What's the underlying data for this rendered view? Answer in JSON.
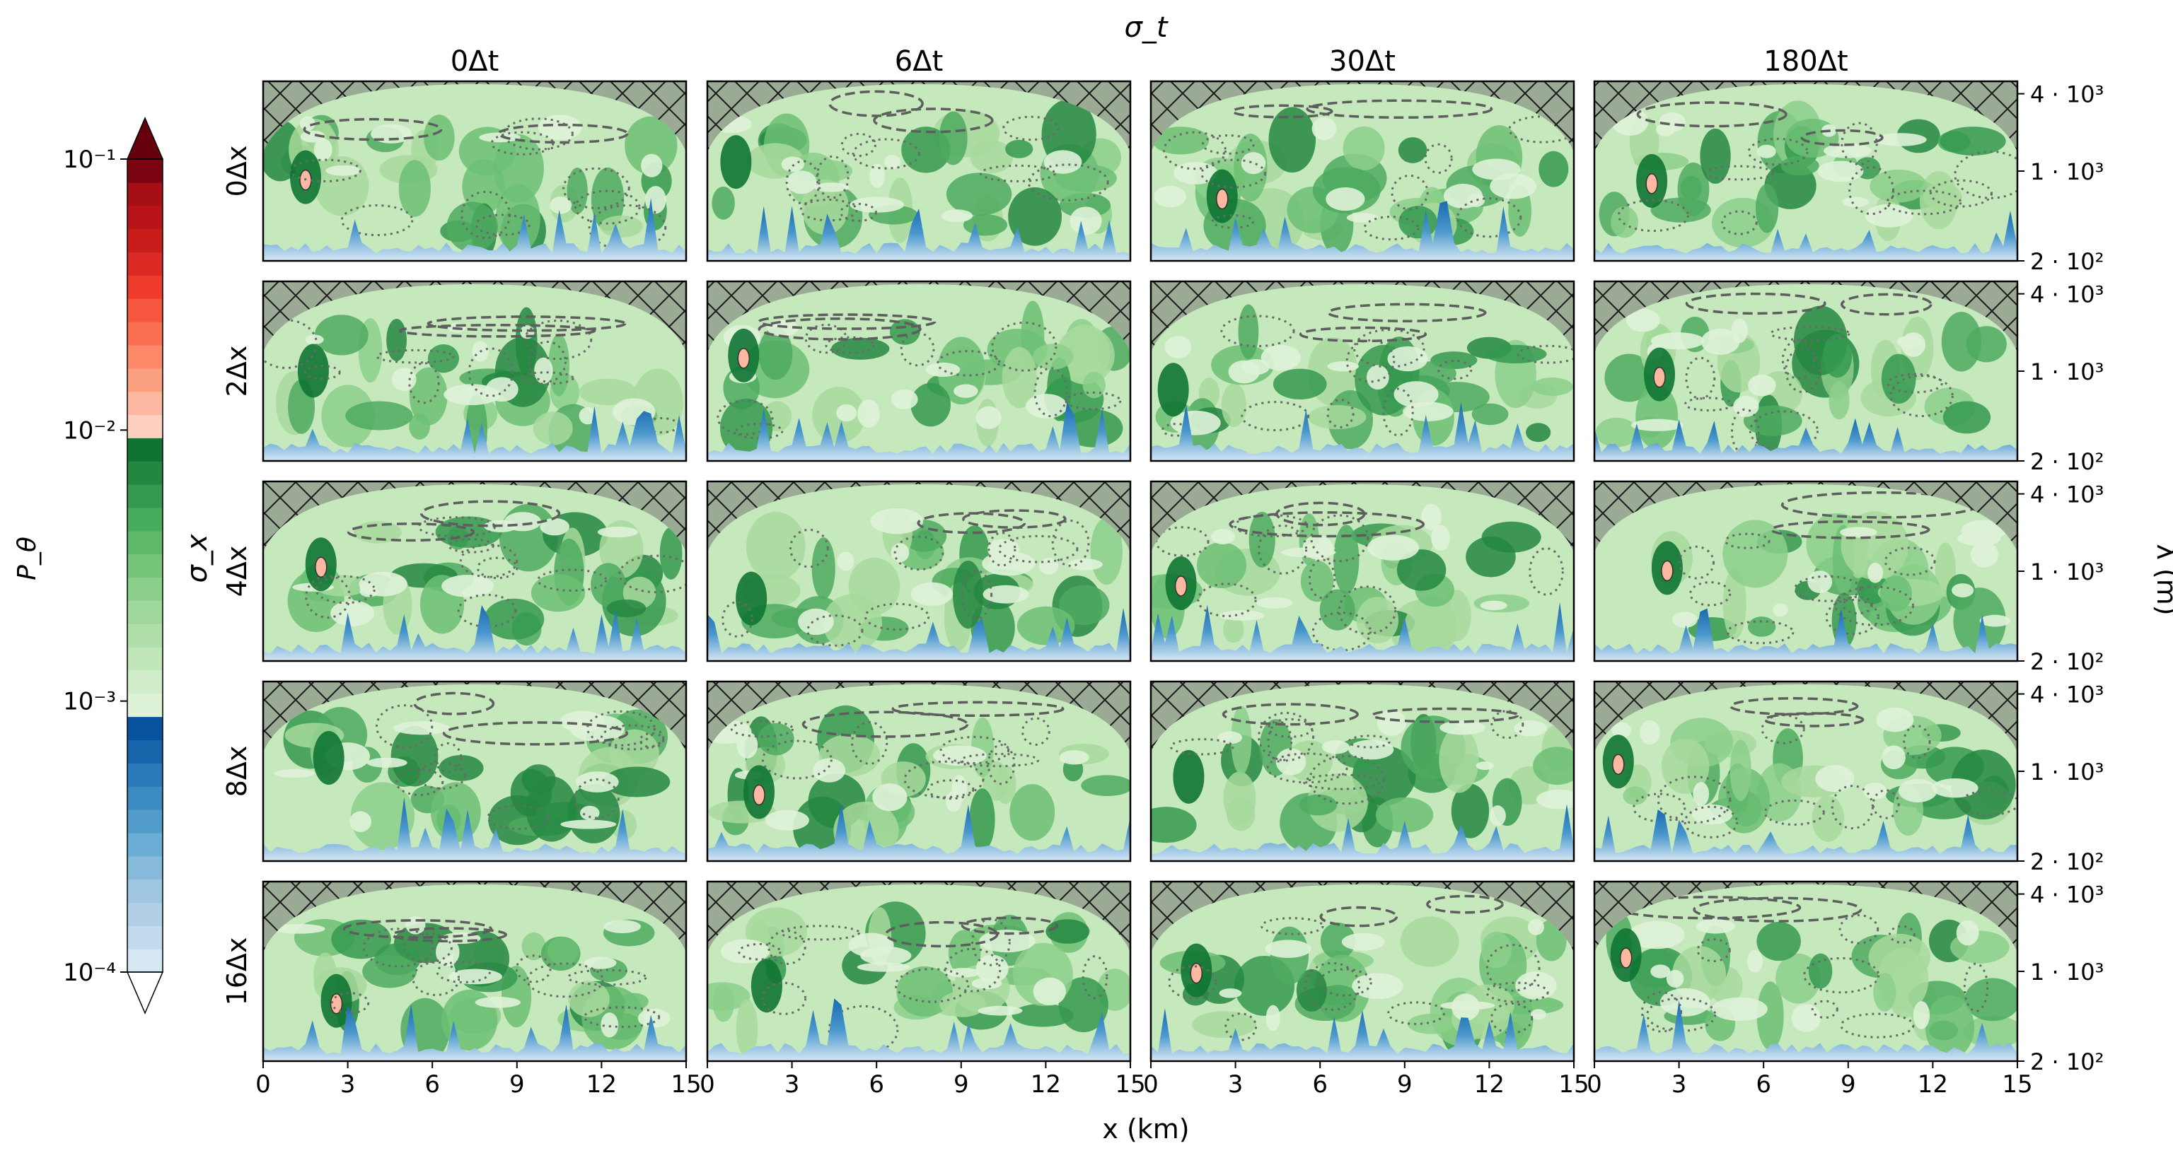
{
  "chart_data": {
    "type": "heatmap",
    "title": "σ_t",
    "column_labels": [
      "0Δt",
      "6Δt",
      "30Δt",
      "180Δt"
    ],
    "row_axis_label": "σ_x",
    "row_labels": [
      "0Δx",
      "2Δx",
      "4Δx",
      "8Δx",
      "16Δx"
    ],
    "xlabel": "x (km)",
    "ylabel": "λ (m)",
    "xticks": [
      "0",
      "3",
      "6",
      "9",
      "12",
      "15"
    ],
    "xlim": [
      0,
      15
    ],
    "yticks": [
      "4 · 10³",
      "1 · 10³",
      "2 · 10²"
    ],
    "ylim": [
      200,
      5000
    ],
    "yscale": "log",
    "colorbar": {
      "label": "P_θ",
      "scale": "log",
      "range": [
        0.0001,
        0.1
      ],
      "ticks": [
        "10⁻¹",
        "10⁻²",
        "10⁻³",
        "10⁻⁴"
      ],
      "extend": "both",
      "colors": [
        "#d6e7f4",
        "#c4daee",
        "#b2cfe6",
        "#9ec6e0",
        "#86b9da",
        "#6aaed6",
        "#519ccb",
        "#3b8bc2",
        "#2a7aba",
        "#1664aa",
        "#08519c",
        "#def2d8",
        "#d1ecc9",
        "#c1e6ba",
        "#b1dfaa",
        "#a0d79b",
        "#8ccf8b",
        "#76c57a",
        "#5fb96b",
        "#47ab5e",
        "#35994f",
        "#248741",
        "#0f7433",
        "#fdd0c0",
        "#fcb8a0",
        "#fca082",
        "#fc8a6a",
        "#fb7050",
        "#f6573e",
        "#ef3b2c",
        "#db2a24",
        "#c91d1c",
        "#b71319",
        "#a50f15",
        "#7a0510"
      ]
    },
    "hatch_region": "cone of influence",
    "contours": [
      "dashed",
      "dotted"
    ]
  }
}
